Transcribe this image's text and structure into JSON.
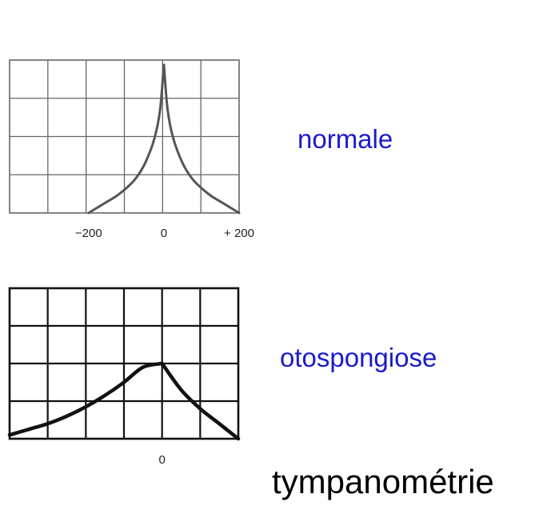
{
  "chart_data": [
    {
      "type": "line",
      "annotation": "normale",
      "x_tick_labels": [
        "−200",
        "0",
        "+ 200"
      ],
      "x_ticks": [
        -200,
        0,
        200
      ],
      "xlim": [
        -410,
        200
      ],
      "ylim": [
        0,
        4
      ],
      "grid": true,
      "series": [
        {
          "x": [
            -200,
            -175,
            -150,
            -125,
            -100,
            -75,
            -50,
            -25,
            -10,
            0,
            10,
            25,
            50,
            75,
            100,
            125,
            150,
            175,
            200
          ],
          "values": [
            0,
            0.15,
            0.3,
            0.45,
            0.65,
            0.9,
            1.3,
            1.95,
            2.7,
            3.9,
            2.7,
            1.95,
            1.3,
            0.9,
            0.65,
            0.45,
            0.3,
            0.15,
            0
          ]
        }
      ]
    },
    {
      "type": "line",
      "annotation": "otospongiose",
      "x_tick_labels": [
        "0"
      ],
      "x_ticks": [
        0
      ],
      "xlim": [
        -400,
        200
      ],
      "ylim": [
        0,
        4
      ],
      "grid": true,
      "series": [
        {
          "x": [
            -400,
            -350,
            -300,
            -250,
            -200,
            -150,
            -100,
            -50,
            0,
            50,
            100,
            150,
            200
          ],
          "values": [
            0.1,
            0.25,
            0.4,
            0.6,
            0.85,
            1.15,
            1.5,
            1.9,
            2,
            1.3,
            0.8,
            0.4,
            0
          ]
        }
      ]
    }
  ],
  "labels": {
    "normale": "normale",
    "otospongiose": "otospongiose",
    "caption": "tympanométrie"
  },
  "colors": {
    "label_blue": "#1a1acc",
    "chart1_line": "#555555",
    "chart2_line": "#111111"
  }
}
